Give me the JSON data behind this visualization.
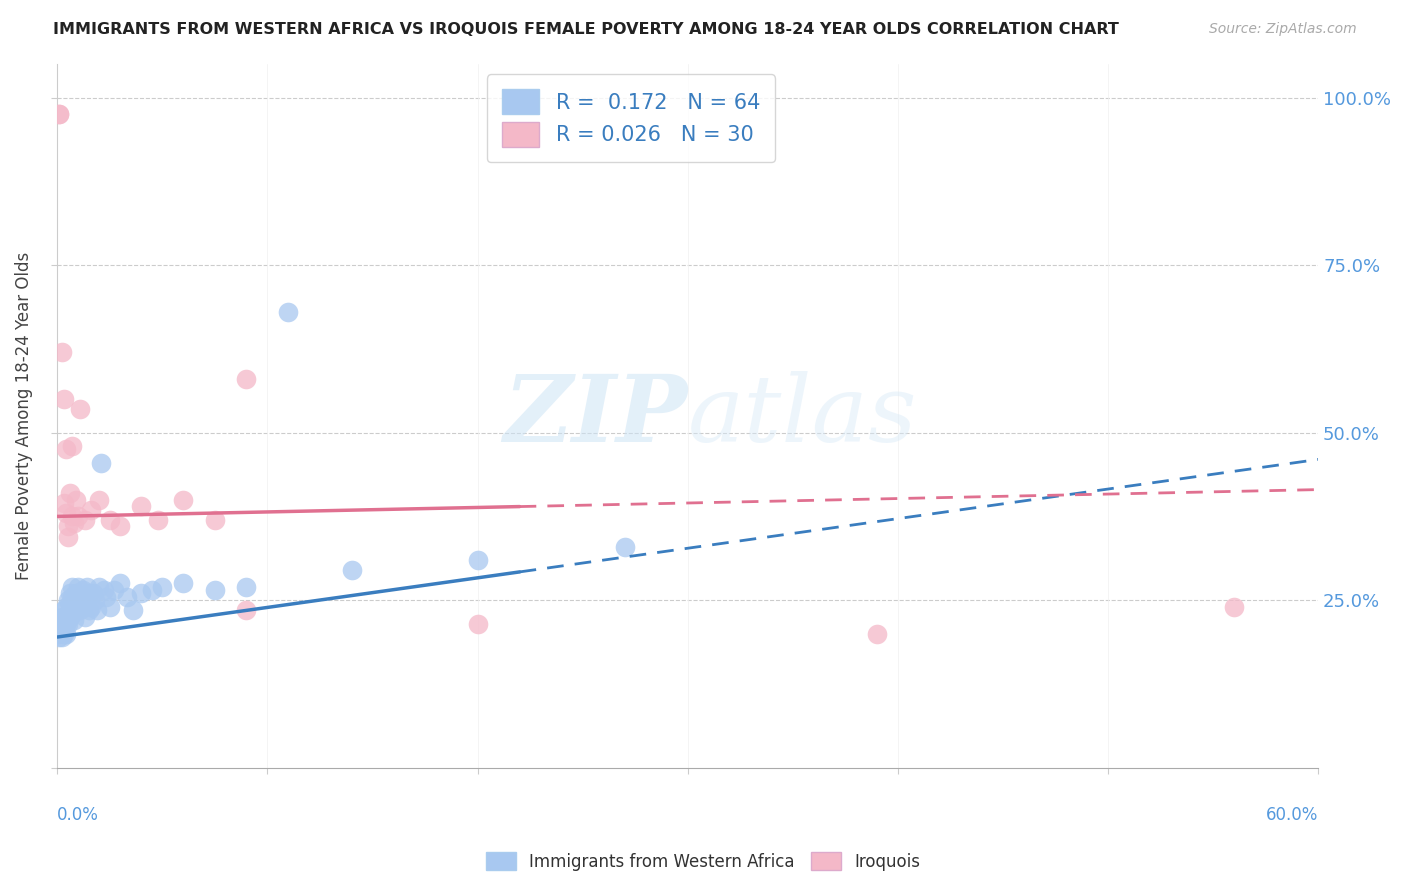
{
  "title": "IMMIGRANTS FROM WESTERN AFRICA VS IROQUOIS FEMALE POVERTY AMONG 18-24 YEAR OLDS CORRELATION CHART",
  "source": "Source: ZipAtlas.com",
  "ylabel": "Female Poverty Among 18-24 Year Olds",
  "legend_blue_R": "0.172",
  "legend_blue_N": "64",
  "legend_pink_R": "0.026",
  "legend_pink_N": "30",
  "legend_label_blue": "Immigrants from Western Africa",
  "legend_label_pink": "Iroquois",
  "blue_color": "#a8c8f0",
  "pink_color": "#f4b8c8",
  "trendline_blue_color": "#3a7dbf",
  "trendline_pink_color": "#e07090",
  "watermark_zip": "ZIP",
  "watermark_atlas": "atlas",
  "xlim": [
    0.0,
    0.6
  ],
  "ylim": [
    0.0,
    1.05
  ],
  "blue_x": [
    0.001,
    0.001,
    0.001,
    0.001,
    0.002,
    0.002,
    0.002,
    0.002,
    0.003,
    0.003,
    0.003,
    0.003,
    0.004,
    0.004,
    0.004,
    0.004,
    0.005,
    0.005,
    0.005,
    0.005,
    0.006,
    0.006,
    0.006,
    0.007,
    0.007,
    0.007,
    0.008,
    0.008,
    0.009,
    0.009,
    0.01,
    0.01,
    0.011,
    0.011,
    0.012,
    0.012,
    0.013,
    0.013,
    0.014,
    0.015,
    0.015,
    0.016,
    0.017,
    0.018,
    0.019,
    0.02,
    0.021,
    0.022,
    0.023,
    0.025,
    0.027,
    0.03,
    0.033,
    0.036,
    0.04,
    0.045,
    0.05,
    0.06,
    0.075,
    0.09,
    0.11,
    0.14,
    0.2,
    0.27
  ],
  "blue_y": [
    0.215,
    0.22,
    0.2,
    0.195,
    0.225,
    0.21,
    0.215,
    0.195,
    0.235,
    0.22,
    0.205,
    0.2,
    0.24,
    0.225,
    0.215,
    0.2,
    0.25,
    0.23,
    0.22,
    0.215,
    0.26,
    0.245,
    0.225,
    0.27,
    0.255,
    0.23,
    0.24,
    0.22,
    0.26,
    0.24,
    0.27,
    0.25,
    0.255,
    0.235,
    0.265,
    0.24,
    0.25,
    0.225,
    0.27,
    0.26,
    0.235,
    0.24,
    0.26,
    0.25,
    0.235,
    0.27,
    0.455,
    0.265,
    0.255,
    0.24,
    0.265,
    0.275,
    0.255,
    0.235,
    0.26,
    0.265,
    0.27,
    0.275,
    0.265,
    0.27,
    0.68,
    0.295,
    0.31,
    0.33
  ],
  "pink_x": [
    0.001,
    0.001,
    0.002,
    0.003,
    0.003,
    0.004,
    0.004,
    0.005,
    0.005,
    0.006,
    0.007,
    0.007,
    0.008,
    0.009,
    0.01,
    0.011,
    0.013,
    0.016,
    0.02,
    0.025,
    0.03,
    0.04,
    0.048,
    0.06,
    0.075,
    0.09,
    0.09,
    0.2,
    0.39,
    0.56
  ],
  "pink_y": [
    0.975,
    0.975,
    0.62,
    0.55,
    0.395,
    0.475,
    0.38,
    0.36,
    0.345,
    0.41,
    0.48,
    0.375,
    0.365,
    0.4,
    0.375,
    0.535,
    0.37,
    0.385,
    0.4,
    0.37,
    0.36,
    0.39,
    0.37,
    0.4,
    0.37,
    0.235,
    0.58,
    0.215,
    0.2,
    0.24
  ],
  "blue_trend_x0": 0.0,
  "blue_trend_x_solid_end": 0.22,
  "blue_trend_x1": 0.6,
  "blue_trend_y0": 0.195,
  "blue_trend_y1": 0.46,
  "pink_trend_x0": 0.0,
  "pink_trend_x_solid_end": 0.22,
  "pink_trend_x1": 0.6,
  "pink_trend_y0": 0.375,
  "pink_trend_y1": 0.415
}
